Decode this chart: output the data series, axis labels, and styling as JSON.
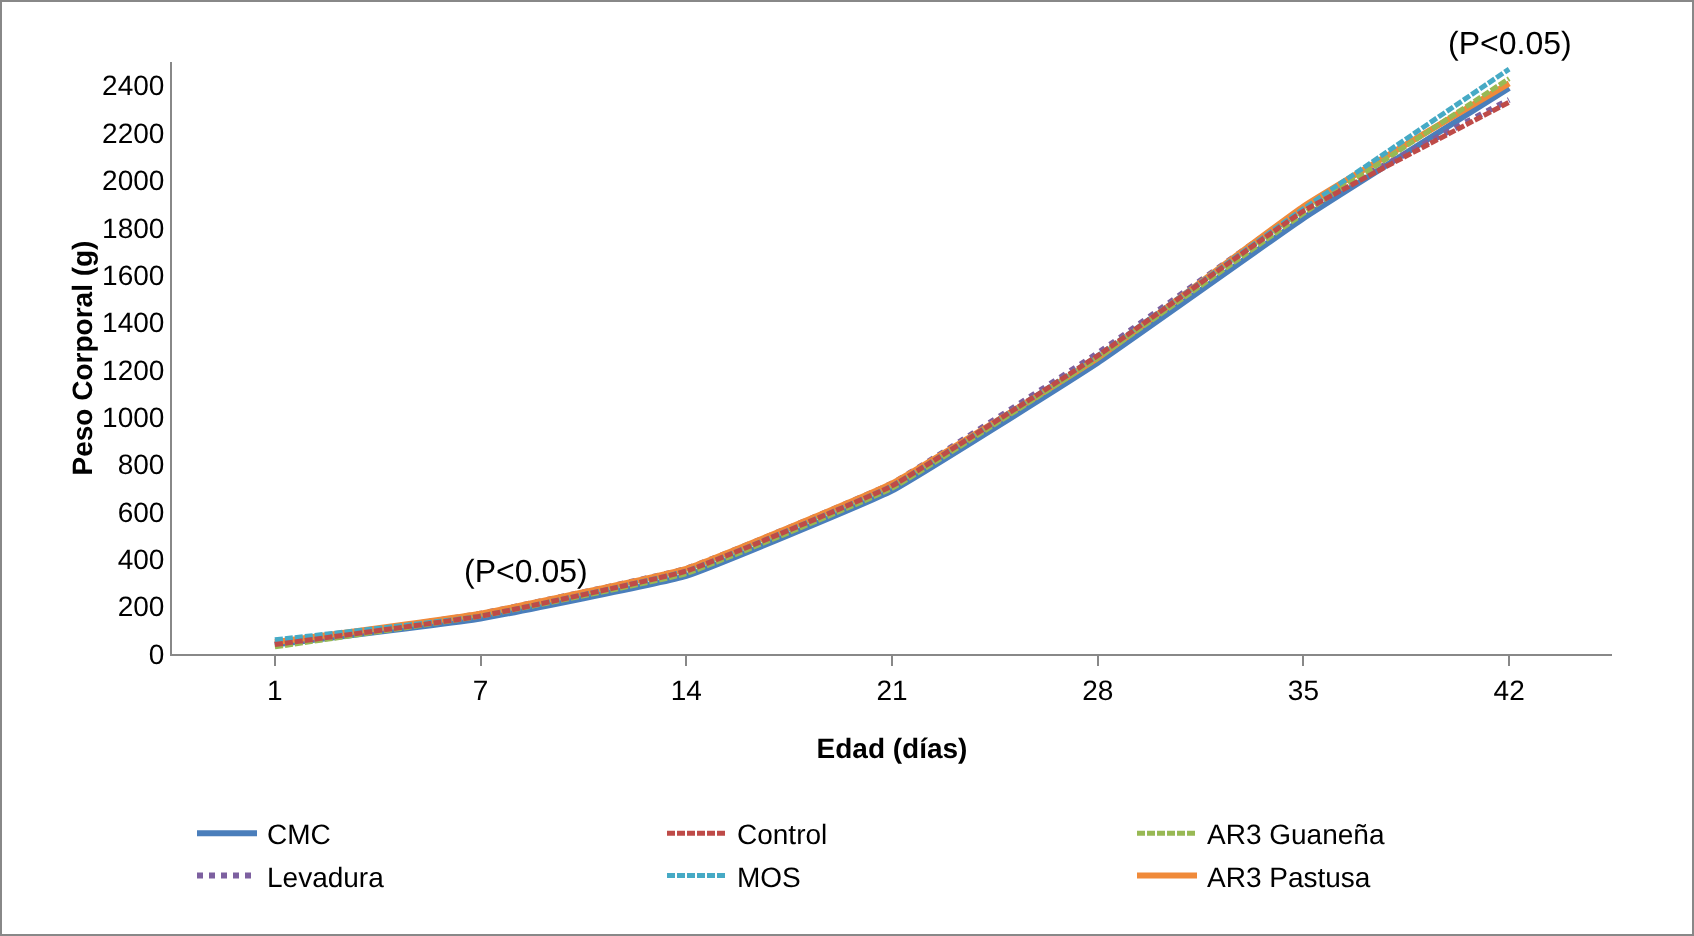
{
  "chart_data": {
    "type": "line",
    "xlabel": "Edad (días)",
    "ylabel": "Peso Corporal (g)",
    "categories": [
      "1",
      "7",
      "14",
      "21",
      "28",
      "35",
      "42"
    ],
    "ylim": [
      0,
      2500
    ],
    "yticks": [
      0,
      200,
      400,
      600,
      800,
      1000,
      1200,
      1400,
      1600,
      1800,
      2000,
      2200,
      2400
    ],
    "grid": false,
    "legend": "bottom",
    "marker": "none",
    "series": [
      {
        "name": "CMC",
        "color": "#4a7ebb",
        "line_style": "solid",
        "values": [
          40,
          150,
          330,
          690,
          1230,
          1840,
          2390
        ]
      },
      {
        "name": "Control",
        "color": "#be4b48",
        "line_style": "dashed",
        "values": [
          40,
          160,
          350,
          710,
          1260,
          1870,
          2330
        ]
      },
      {
        "name": "AR3 Guaneña",
        "color": "#98b954",
        "line_style": "dashed",
        "values": [
          30,
          160,
          340,
          700,
          1250,
          1860,
          2430
        ]
      },
      {
        "name": "Levadura",
        "color": "#7d60a0",
        "line_style": "dotted",
        "values": [
          40,
          170,
          360,
          720,
          1270,
          1880,
          2340
        ]
      },
      {
        "name": "MOS",
        "color": "#46aac5",
        "line_style": "dashed",
        "values": [
          60,
          160,
          350,
          710,
          1260,
          1880,
          2470
        ]
      },
      {
        "name": "AR3 Pastusa",
        "color": "#f08a3a",
        "line_style": "solid",
        "values": [
          50,
          170,
          360,
          720,
          1250,
          1890,
          2410
        ]
      }
    ],
    "annotations": [
      "(P<0.05)",
      {
        "text": "(P<0.05)",
        "x": "42",
        "y": 2480
      }
    ]
  }
}
